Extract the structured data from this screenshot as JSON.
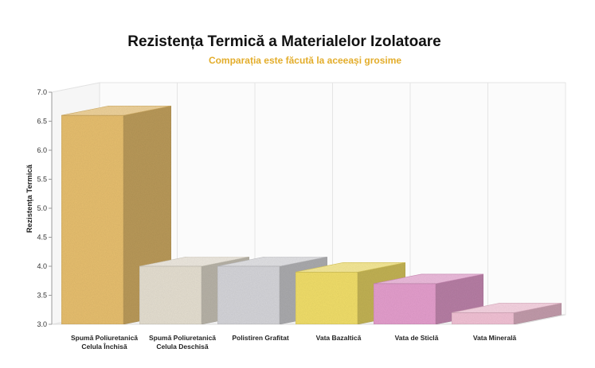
{
  "chart_data": {
    "type": "bar",
    "title": "Rezistența Termică a Materialelor Izolatoare",
    "subtitle": "Comparația este făcută la aceeași grosime",
    "ylabel": "Rezistența Termică",
    "xlabel": "",
    "ylim": [
      3.0,
      7.0
    ],
    "yticks": [
      "3.0",
      "3.5",
      "4.0",
      "4.5",
      "5.0",
      "5.5",
      "6.0",
      "6.5",
      "7.0"
    ],
    "grid": true,
    "legend": "none",
    "categories": [
      [
        "Spumă Poliuretanică",
        "Celula Închisă"
      ],
      [
        "Spumă Poliuretanică",
        "Celula Deschisă"
      ],
      [
        "Polistiren Grafitat"
      ],
      [
        "Vata Bazaltică"
      ],
      [
        "Vata de Sticlă"
      ],
      [
        "Vata Minerală"
      ]
    ],
    "values": [
      6.6,
      4.0,
      4.0,
      3.9,
      3.7,
      3.2
    ],
    "colors": [
      "#e8c070",
      "#e6e0d2",
      "#d6d6da",
      "#f2df6a",
      "#e59fce",
      "#f3c2d6"
    ],
    "subtitle_color": "#e3ad2b"
  }
}
